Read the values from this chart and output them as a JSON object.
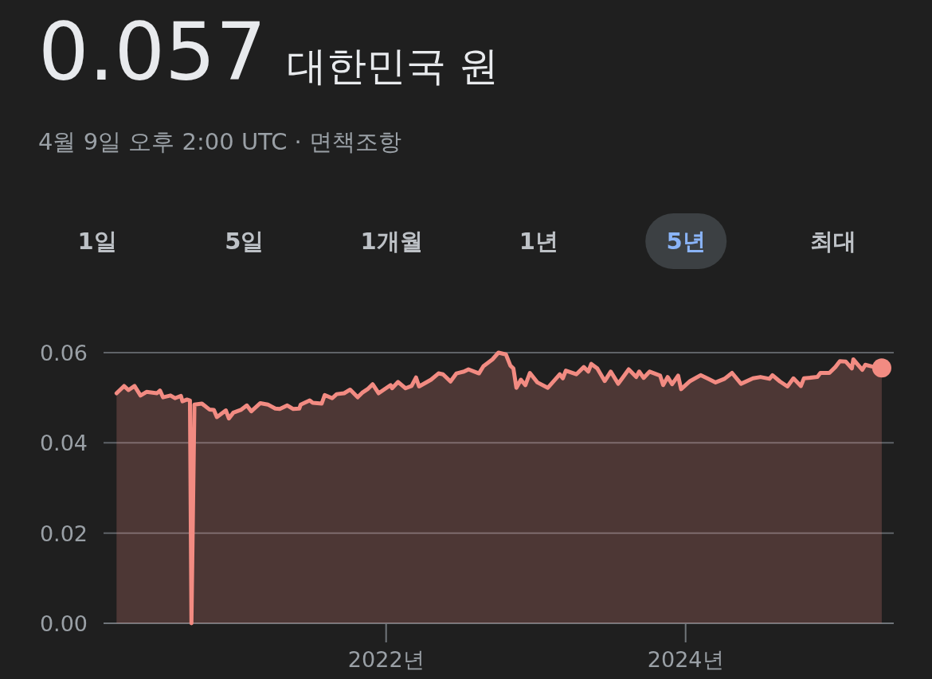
{
  "chart_data": {
    "type": "area",
    "title": "0.057",
    "subtitle": "대한민국 원",
    "annotations": [
      "4월 9일 오후 2:00 UTC · 면책조항",
      "1일",
      "5일",
      "1개월",
      "1년",
      "5년",
      "최대"
    ],
    "x": [
      2020.2,
      2020.25,
      2020.28,
      2020.32,
      2020.36,
      2020.4,
      2020.47,
      2020.49,
      2020.51,
      2020.56,
      2020.59,
      2020.63,
      2020.64,
      2020.67,
      2020.69,
      2020.7,
      2020.72,
      2020.77,
      2020.82,
      2020.85,
      2020.87,
      2020.93,
      2020.95,
      2020.98,
      2021.03,
      2021.07,
      2021.1,
      2021.16,
      2021.21,
      2021.26,
      2021.29,
      2021.34,
      2021.38,
      2021.42,
      2021.43,
      2021.49,
      2021.51,
      2021.57,
      2021.59,
      2021.64,
      2021.67,
      2021.72,
      2021.76,
      2021.81,
      2021.84,
      2021.88,
      2021.91,
      2021.95,
      2022.03,
      2022.04,
      2022.08,
      2022.13,
      2022.17,
      2022.2,
      2022.22,
      2022.3,
      2022.35,
      2022.38,
      2022.43,
      2022.47,
      2022.52,
      2022.55,
      2022.62,
      2022.65,
      2022.71,
      2022.75,
      2022.8,
      2022.83,
      2022.85,
      2022.87,
      2022.9,
      2022.93,
      2022.96,
      2023.01,
      2023.08,
      2023.16,
      2023.18,
      2023.2,
      2023.27,
      2023.32,
      2023.35,
      2023.37,
      2023.41,
      2023.46,
      2023.5,
      2023.55,
      2023.57,
      2023.62,
      2023.67,
      2023.69,
      2023.72,
      2023.76,
      2023.83,
      2023.85,
      2023.88,
      2023.91,
      2023.95,
      2023.97,
      2024.03,
      2024.1,
      2024.15,
      2024.2,
      2024.26,
      2024.31,
      2024.37,
      2024.45,
      2024.5,
      2024.56,
      2024.58,
      2024.63,
      2024.68,
      2024.72,
      2024.77,
      2024.79,
      2024.88,
      2024.9,
      2024.96,
      2025.0,
      2025.03,
      2025.07,
      2025.11,
      2025.12,
      2025.18,
      2025.2,
      2025.25,
      2025.31
    ],
    "series": [
      {
        "color": "#f28b82",
        "values": [
          0.051,
          0.0526,
          0.0517,
          0.0526,
          0.0505,
          0.0513,
          0.051,
          0.0516,
          0.0501,
          0.0505,
          0.0499,
          0.0504,
          0.0492,
          0.0496,
          0.0494,
          0,
          0.0485,
          0.0487,
          0.0474,
          0.0473,
          0.0457,
          0.0472,
          0.0454,
          0.0467,
          0.0473,
          0.0483,
          0.047,
          0.0488,
          0.0485,
          0.0476,
          0.0475,
          0.0483,
          0.0475,
          0.0476,
          0.0485,
          0.0494,
          0.0489,
          0.0487,
          0.0506,
          0.0499,
          0.0508,
          0.051,
          0.0518,
          0.0501,
          0.0511,
          0.052,
          0.053,
          0.051,
          0.0528,
          0.0521,
          0.0535,
          0.0521,
          0.0526,
          0.0545,
          0.0525,
          0.054,
          0.0554,
          0.0552,
          0.0536,
          0.0554,
          0.0558,
          0.0563,
          0.0554,
          0.057,
          0.0585,
          0.06,
          0.0596,
          0.0571,
          0.0565,
          0.0522,
          0.054,
          0.0528,
          0.0555,
          0.0534,
          0.0522,
          0.0552,
          0.0543,
          0.056,
          0.0552,
          0.0568,
          0.0558,
          0.0575,
          0.0565,
          0.0537,
          0.0558,
          0.0531,
          0.054,
          0.0563,
          0.0546,
          0.0558,
          0.0544,
          0.0558,
          0.0549,
          0.0528,
          0.0546,
          0.053,
          0.0549,
          0.0519,
          0.0537,
          0.055,
          0.0542,
          0.0534,
          0.0542,
          0.0555,
          0.0531,
          0.0543,
          0.0546,
          0.0542,
          0.055,
          0.0536,
          0.0525,
          0.0543,
          0.0526,
          0.0543,
          0.0546,
          0.0555,
          0.0555,
          0.0568,
          0.0581,
          0.058,
          0.0565,
          0.0585,
          0.0562,
          0.0573,
          0.0569,
          0.0566
        ]
      }
    ],
    "xlim": [
      2020.06,
      2025.39
    ],
    "ylim": [
      0,
      0.06
    ],
    "xticks": [
      {
        "value": 2022,
        "label": "2022년"
      },
      {
        "value": 2024,
        "label": "2024년"
      }
    ],
    "yticks": [
      {
        "value": 0,
        "label": "0.00"
      },
      {
        "value": 0.02,
        "label": "0.02"
      },
      {
        "value": 0.04,
        "label": "0.04"
      },
      {
        "value": 0.06,
        "label": "0.06"
      }
    ],
    "grid": "y"
  }
}
